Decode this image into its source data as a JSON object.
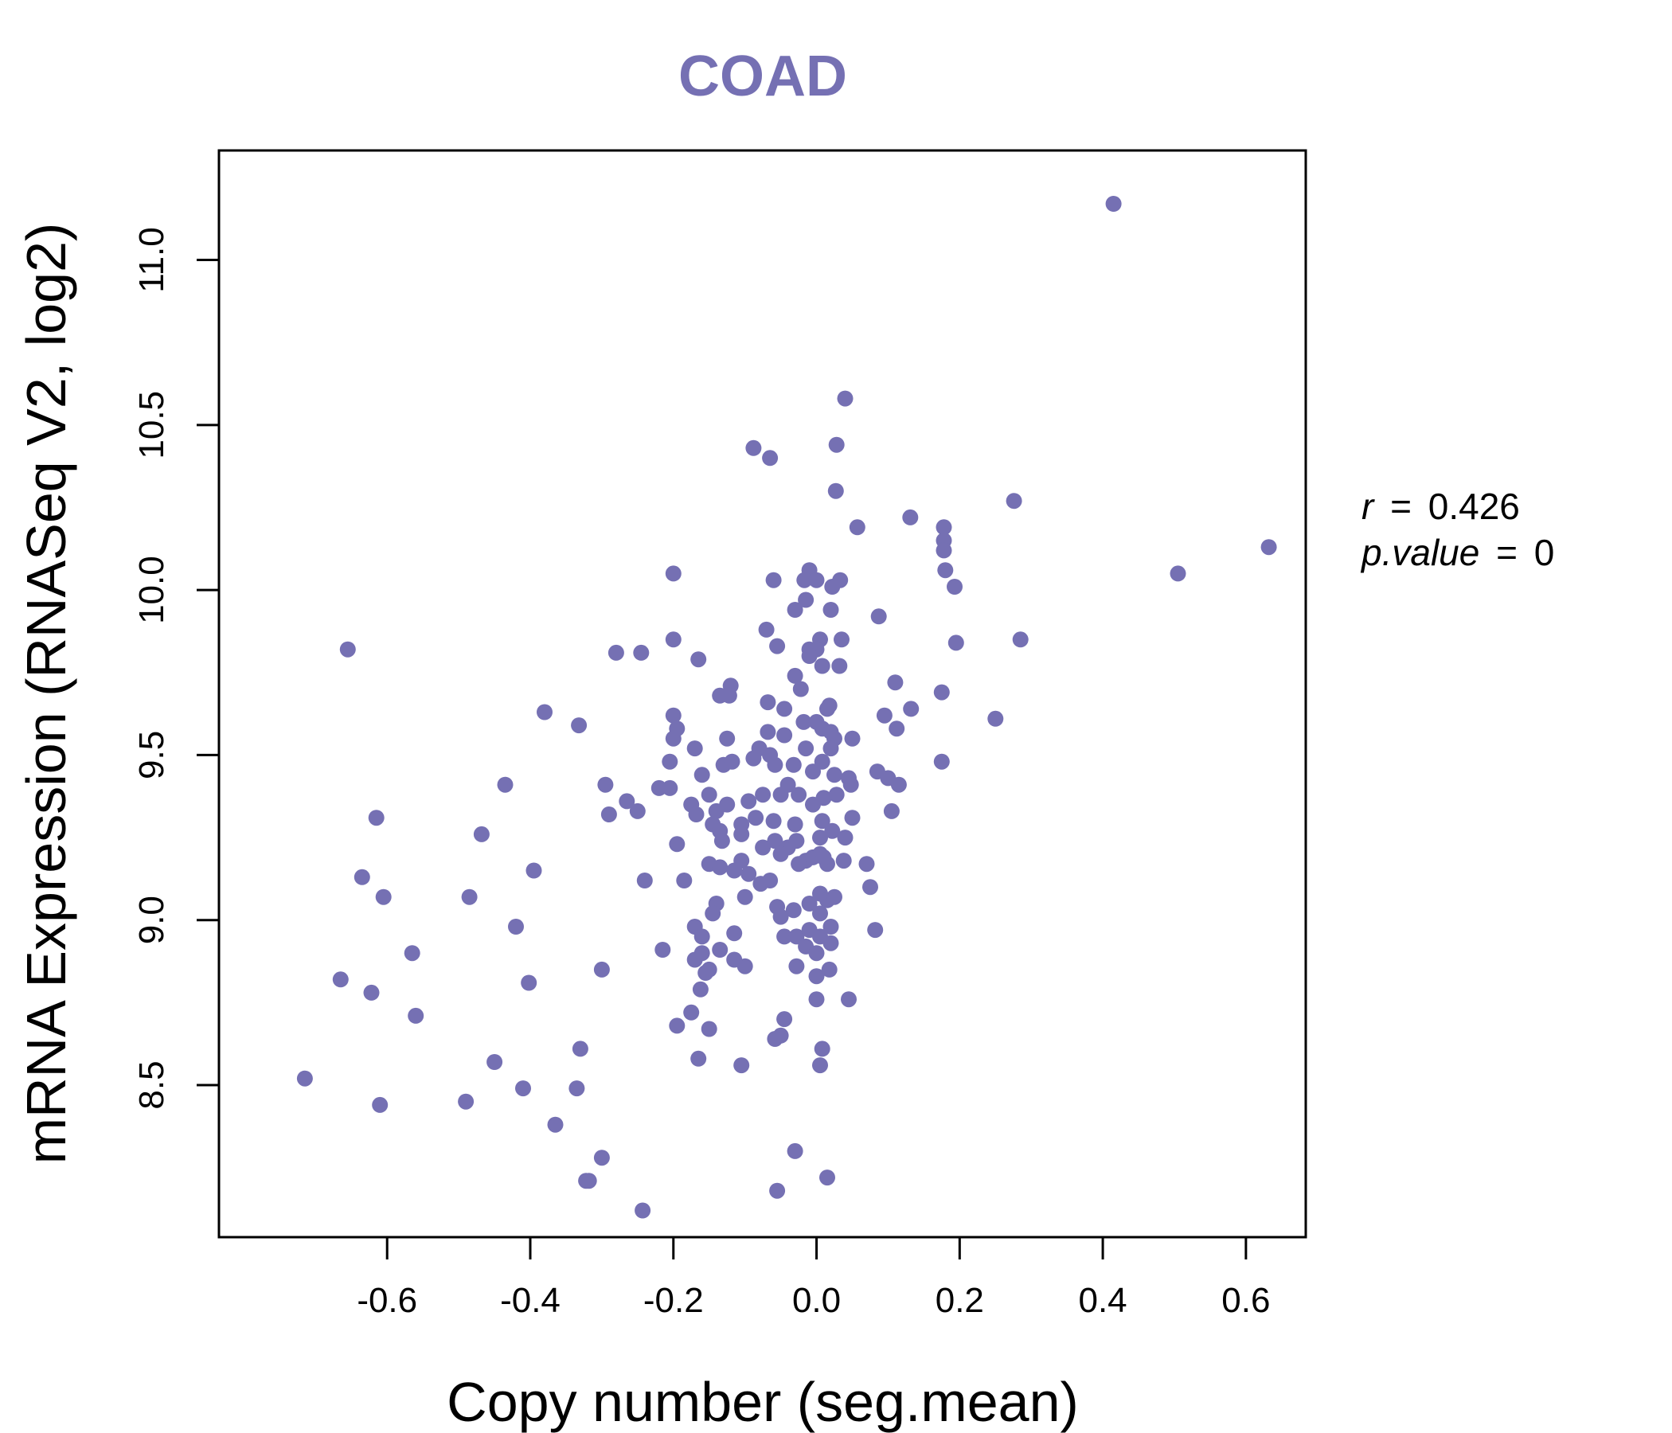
{
  "colors": {
    "accent": "#7570B3",
    "axis": "#000000"
  },
  "chart_data": {
    "type": "scatter",
    "title": "COAD",
    "xlabel": "Copy number (seg.mean)",
    "ylabel": "mRNA Expression (RNASeq V2, log2)",
    "xlim": [
      -0.835,
      0.6836
    ],
    "ylim": [
      8.0393,
      11.3317
    ],
    "x_ticks": [
      -0.6,
      -0.4,
      -0.2,
      0.0,
      0.2,
      0.4,
      0.6
    ],
    "x_tick_labels": [
      "-0.6",
      "-0.4",
      "-0.2",
      "0.0",
      "0.2",
      "0.4",
      "0.6"
    ],
    "y_ticks": [
      8.5,
      9.0,
      9.5,
      10.0,
      10.5,
      11.0
    ],
    "y_tick_labels": [
      "8.5",
      "9.0",
      "9.5",
      "10.0",
      "10.5",
      "11.0"
    ],
    "grid": false,
    "legend": "none",
    "stats": {
      "r_label": "r",
      "r_value": "0.426",
      "p_label": "p.value",
      "p_value": "0",
      "eq": "="
    },
    "points": [
      [
        0.415,
        11.17
      ],
      [
        0.632,
        10.13
      ],
      [
        0.505,
        10.05
      ],
      [
        0.276,
        10.27
      ],
      [
        0.04,
        10.58
      ],
      [
        0.028,
        10.44
      ],
      [
        -0.088,
        10.43
      ],
      [
        -0.065,
        10.4
      ],
      [
        0.027,
        10.3
      ],
      [
        0.131,
        10.22
      ],
      [
        0.057,
        10.19
      ],
      [
        0.178,
        10.19
      ],
      [
        0.178,
        10.15
      ],
      [
        0.178,
        10.12
      ],
      [
        0.18,
        10.06
      ],
      [
        0.193,
        10.01
      ],
      [
        -0.2,
        10.05
      ],
      [
        -0.06,
        10.03
      ],
      [
        -0.01,
        10.06
      ],
      [
        -0.017,
        10.03
      ],
      [
        0.0,
        10.03
      ],
      [
        0.033,
        10.03
      ],
      [
        0.022,
        10.01
      ],
      [
        -0.03,
        9.94
      ],
      [
        -0.015,
        9.97
      ],
      [
        0.02,
        9.94
      ],
      [
        0.087,
        9.92
      ],
      [
        -0.655,
        9.82
      ],
      [
        -0.28,
        9.81
      ],
      [
        -0.245,
        9.81
      ],
      [
        -0.2,
        9.85
      ],
      [
        -0.165,
        9.79
      ],
      [
        -0.07,
        9.88
      ],
      [
        -0.055,
        9.83
      ],
      [
        -0.01,
        9.82
      ],
      [
        0.005,
        9.85
      ],
      [
        0.035,
        9.85
      ],
      [
        0.195,
        9.84
      ],
      [
        0.285,
        9.85
      ],
      [
        0.0,
        9.82
      ],
      [
        -0.01,
        9.8
      ],
      [
        0.008,
        9.77
      ],
      [
        0.032,
        9.77
      ],
      [
        -0.03,
        9.74
      ],
      [
        -0.022,
        9.7
      ],
      [
        -0.12,
        9.71
      ],
      [
        -0.135,
        9.68
      ],
      [
        -0.122,
        9.68
      ],
      [
        -0.068,
        9.66
      ],
      [
        -0.045,
        9.64
      ],
      [
        0.018,
        9.65
      ],
      [
        0.015,
        9.64
      ],
      [
        0.11,
        9.72
      ],
      [
        0.132,
        9.64
      ],
      [
        0.175,
        9.69
      ],
      [
        0.095,
        9.62
      ],
      [
        0.25,
        9.61
      ],
      [
        -0.38,
        9.63
      ],
      [
        -0.332,
        9.59
      ],
      [
        -0.2,
        9.62
      ],
      [
        -0.195,
        9.58
      ],
      [
        -0.2,
        9.55
      ],
      [
        -0.17,
        9.52
      ],
      [
        -0.125,
        9.55
      ],
      [
        -0.068,
        9.57
      ],
      [
        -0.045,
        9.56
      ],
      [
        -0.018,
        9.6
      ],
      [
        0.0,
        9.6
      ],
      [
        0.008,
        9.58
      ],
      [
        0.02,
        9.57
      ],
      [
        0.025,
        9.55
      ],
      [
        0.05,
        9.55
      ],
      [
        0.112,
        9.58
      ],
      [
        -0.08,
        9.52
      ],
      [
        -0.065,
        9.5
      ],
      [
        -0.015,
        9.52
      ],
      [
        0.02,
        9.52
      ],
      [
        -0.205,
        9.48
      ],
      [
        -0.16,
        9.44
      ],
      [
        -0.13,
        9.47
      ],
      [
        -0.118,
        9.48
      ],
      [
        -0.088,
        9.49
      ],
      [
        -0.058,
        9.47
      ],
      [
        -0.032,
        9.47
      ],
      [
        -0.005,
        9.45
      ],
      [
        0.008,
        9.48
      ],
      [
        0.025,
        9.44
      ],
      [
        0.045,
        9.43
      ],
      [
        0.085,
        9.45
      ],
      [
        0.1,
        9.43
      ],
      [
        0.115,
        9.41
      ],
      [
        0.175,
        9.48
      ],
      [
        -0.435,
        9.41
      ],
      [
        -0.295,
        9.41
      ],
      [
        -0.265,
        9.36
      ],
      [
        -0.22,
        9.4
      ],
      [
        -0.205,
        9.4
      ],
      [
        -0.175,
        9.35
      ],
      [
        -0.15,
        9.38
      ],
      [
        -0.14,
        9.33
      ],
      [
        -0.125,
        9.35
      ],
      [
        -0.095,
        9.36
      ],
      [
        -0.075,
        9.38
      ],
      [
        -0.05,
        9.38
      ],
      [
        -0.04,
        9.41
      ],
      [
        -0.025,
        9.38
      ],
      [
        -0.005,
        9.35
      ],
      [
        0.01,
        9.37
      ],
      [
        0.028,
        9.38
      ],
      [
        0.048,
        9.41
      ],
      [
        -0.168,
        9.32
      ],
      [
        -0.145,
        9.29
      ],
      [
        -0.135,
        9.27
      ],
      [
        -0.105,
        9.29
      ],
      [
        -0.085,
        9.31
      ],
      [
        -0.06,
        9.3
      ],
      [
        -0.03,
        9.29
      ],
      [
        0.008,
        9.3
      ],
      [
        0.05,
        9.31
      ],
      [
        0.105,
        9.33
      ],
      [
        -0.615,
        9.31
      ],
      [
        -0.29,
        9.32
      ],
      [
        -0.25,
        9.33
      ],
      [
        -0.468,
        9.26
      ],
      [
        -0.195,
        9.23
      ],
      [
        -0.132,
        9.24
      ],
      [
        -0.105,
        9.26
      ],
      [
        -0.075,
        9.22
      ],
      [
        -0.058,
        9.24
      ],
      [
        -0.04,
        9.22
      ],
      [
        -0.028,
        9.24
      ],
      [
        0.005,
        9.25
      ],
      [
        0.022,
        9.27
      ],
      [
        0.04,
        9.25
      ],
      [
        -0.05,
        9.2
      ],
      [
        -0.015,
        9.18
      ],
      [
        0.005,
        9.2
      ],
      [
        0.015,
        9.17
      ],
      [
        0.038,
        9.18
      ],
      [
        0.07,
        9.17
      ],
      [
        -0.635,
        9.13
      ],
      [
        -0.605,
        9.07
      ],
      [
        -0.395,
        9.15
      ],
      [
        -0.24,
        9.12
      ],
      [
        -0.185,
        9.12
      ],
      [
        -0.15,
        9.17
      ],
      [
        -0.135,
        9.16
      ],
      [
        -0.115,
        9.15
      ],
      [
        -0.105,
        9.18
      ],
      [
        -0.095,
        9.14
      ],
      [
        -0.078,
        9.11
      ],
      [
        -0.065,
        9.12
      ],
      [
        -0.025,
        9.17
      ],
      [
        -0.005,
        9.19
      ],
      [
        0.01,
        9.19
      ],
      [
        0.075,
        9.1
      ],
      [
        -0.485,
        9.07
      ],
      [
        -0.1,
        9.07
      ],
      [
        -0.14,
        9.05
      ],
      [
        -0.145,
        9.02
      ],
      [
        -0.055,
        9.04
      ],
      [
        -0.05,
        9.01
      ],
      [
        -0.032,
        9.03
      ],
      [
        -0.01,
        9.05
      ],
      [
        0.005,
        9.08
      ],
      [
        0.015,
        9.06
      ],
      [
        0.025,
        9.07
      ],
      [
        0.005,
        9.02
      ],
      [
        -0.42,
        8.98
      ],
      [
        -0.17,
        8.98
      ],
      [
        -0.16,
        8.95
      ],
      [
        -0.115,
        8.96
      ],
      [
        -0.045,
        8.95
      ],
      [
        -0.028,
        8.95
      ],
      [
        -0.01,
        8.97
      ],
      [
        0.005,
        8.95
      ],
      [
        0.02,
        8.98
      ],
      [
        0.082,
        8.97
      ],
      [
        -0.015,
        8.92
      ],
      [
        0.0,
        8.9
      ],
      [
        0.02,
        8.93
      ],
      [
        -0.565,
        8.9
      ],
      [
        -0.215,
        8.91
      ],
      [
        -0.17,
        8.88
      ],
      [
        -0.16,
        8.9
      ],
      [
        -0.135,
        8.91
      ],
      [
        -0.115,
        8.88
      ],
      [
        -0.1,
        8.86
      ],
      [
        -0.15,
        8.85
      ],
      [
        -0.155,
        8.84
      ],
      [
        -0.028,
        8.86
      ],
      [
        0.0,
        8.83
      ],
      [
        0.018,
        8.85
      ],
      [
        -0.665,
        8.82
      ],
      [
        -0.622,
        8.78
      ],
      [
        -0.402,
        8.81
      ],
      [
        -0.3,
        8.85
      ],
      [
        -0.162,
        8.79
      ],
      [
        -0.56,
        8.71
      ],
      [
        -0.175,
        8.72
      ],
      [
        -0.195,
        8.68
      ],
      [
        -0.15,
        8.67
      ],
      [
        -0.045,
        8.7
      ],
      [
        -0.05,
        8.65
      ],
      [
        -0.058,
        8.64
      ],
      [
        0.0,
        8.76
      ],
      [
        0.045,
        8.76
      ],
      [
        -0.45,
        8.57
      ],
      [
        -0.33,
        8.61
      ],
      [
        -0.165,
        8.58
      ],
      [
        -0.105,
        8.56
      ],
      [
        0.008,
        8.61
      ],
      [
        0.005,
        8.56
      ],
      [
        -0.715,
        8.52
      ],
      [
        -0.61,
        8.44
      ],
      [
        -0.49,
        8.45
      ],
      [
        -0.41,
        8.49
      ],
      [
        -0.335,
        8.49
      ],
      [
        -0.365,
        8.38
      ],
      [
        -0.3,
        8.28
      ],
      [
        -0.322,
        8.21
      ],
      [
        -0.318,
        8.21
      ],
      [
        -0.243,
        8.12
      ],
      [
        -0.03,
        8.3
      ],
      [
        -0.055,
        8.18
      ],
      [
        0.015,
        8.22
      ]
    ]
  }
}
